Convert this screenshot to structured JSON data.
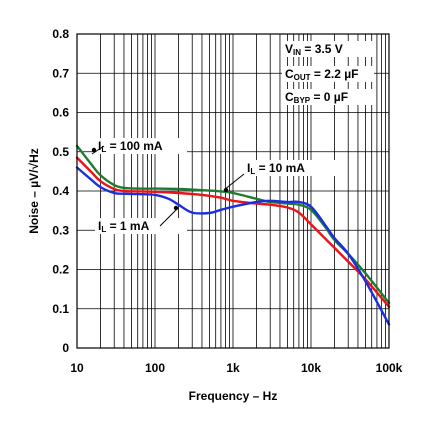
{
  "chart_data": {
    "type": "line",
    "x_scale": "log",
    "xlim": [
      10,
      100000
    ],
    "ylim": [
      0,
      0.8
    ],
    "grid": true,
    "xlabel": "Frequency – Hz",
    "ylabel": "Noise – µV/√Hz",
    "x_ticks": [
      "10",
      "100",
      "1k",
      "10k",
      "100k"
    ],
    "y_ticks": [
      "0",
      "0.1",
      "0.2",
      "0.3",
      "0.4",
      "0.5",
      "0.6",
      "0.7",
      "0.8"
    ],
    "conditions": [
      {
        "main": "V",
        "sub": "IN",
        "rest": " = 3.5 V"
      },
      {
        "main": "C",
        "sub": "OUT",
        "rest": " = 2.2 µF"
      },
      {
        "main": "C",
        "sub": "BYP",
        "rest": " = 0 µF"
      }
    ],
    "series": [
      {
        "label": {
          "main": "I",
          "sub": "L",
          "rest": " = 100 mA"
        },
        "color": "#1f7a30",
        "x": [
          10,
          15,
          20,
          30,
          40,
          60,
          100,
          200,
          400,
          700,
          1000,
          2000,
          3000,
          5000,
          7000,
          10000,
          15000,
          20000,
          30000,
          50000,
          100000
        ],
        "y": [
          0.515,
          0.47,
          0.44,
          0.415,
          0.408,
          0.406,
          0.406,
          0.405,
          0.402,
          0.399,
          0.395,
          0.38,
          0.372,
          0.368,
          0.365,
          0.352,
          0.31,
          0.275,
          0.24,
          0.19,
          0.115
        ]
      },
      {
        "label": {
          "main": "I",
          "sub": "L",
          "rest": " = 10 mA"
        },
        "color": "#e8141a",
        "x": [
          10,
          15,
          20,
          30,
          40,
          60,
          100,
          200,
          400,
          700,
          1000,
          2000,
          3000,
          5000,
          7000,
          10000,
          15000,
          20000,
          30000,
          50000,
          100000
        ],
        "y": [
          0.485,
          0.45,
          0.425,
          0.405,
          0.4,
          0.399,
          0.398,
          0.395,
          0.39,
          0.383,
          0.375,
          0.368,
          0.365,
          0.358,
          0.345,
          0.315,
          0.28,
          0.255,
          0.22,
          0.175,
          0.105
        ]
      },
      {
        "label": {
          "main": "I",
          "sub": "L",
          "rest": " = 1 mA"
        },
        "color": "#1a2ee0",
        "x": [
          10,
          15,
          20,
          30,
          40,
          60,
          100,
          150,
          200,
          300,
          500,
          700,
          1000,
          2000,
          3000,
          5000,
          7000,
          10000,
          15000,
          20000,
          30000,
          50000,
          100000
        ],
        "y": [
          0.46,
          0.43,
          0.41,
          0.395,
          0.393,
          0.392,
          0.39,
          0.38,
          0.365,
          0.345,
          0.344,
          0.352,
          0.36,
          0.372,
          0.375,
          0.372,
          0.372,
          0.36,
          0.315,
          0.28,
          0.24,
          0.17,
          0.06
        ]
      }
    ]
  }
}
